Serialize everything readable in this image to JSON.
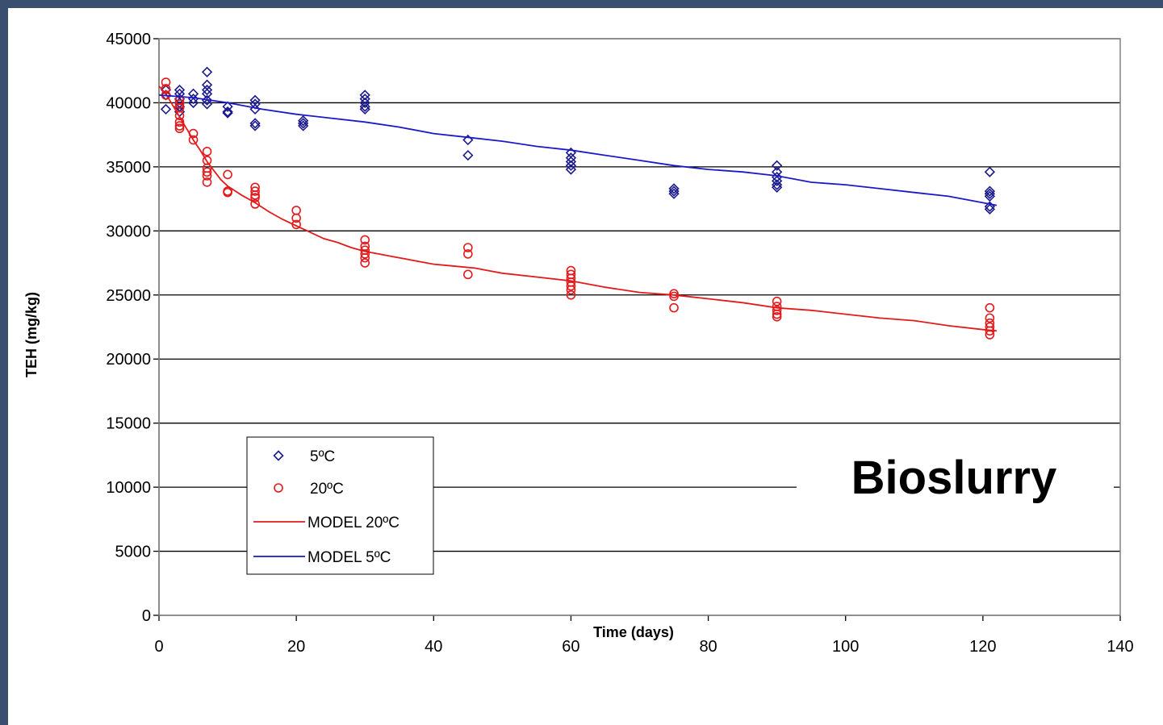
{
  "chart_data": {
    "type": "scatter",
    "xlabel": "Time (days)",
    "ylabel": "TEH (mg/kg)",
    "xlim": [
      0,
      140
    ],
    "ylim": [
      0,
      45000
    ],
    "xticks": [
      0,
      20,
      40,
      60,
      80,
      100,
      120,
      140
    ],
    "yticks": [
      0,
      5000,
      10000,
      15000,
      20000,
      25000,
      30000,
      35000,
      40000,
      45000
    ],
    "grid": "horizontal",
    "legend_position": "bottom-left",
    "annotation": "Bioslurry",
    "series": [
      {
        "name": "5ºC",
        "kind": "scatter",
        "marker": "diamond",
        "color": "#1a1a8c",
        "points": [
          [
            1,
            41000
          ],
          [
            1,
            40600
          ],
          [
            1,
            39500
          ],
          [
            3,
            41000
          ],
          [
            3,
            40700
          ],
          [
            3,
            40300
          ],
          [
            3,
            40000
          ],
          [
            3,
            39700
          ],
          [
            3,
            39300
          ],
          [
            5,
            40700
          ],
          [
            5,
            40300
          ],
          [
            5,
            40000
          ],
          [
            7,
            42400
          ],
          [
            7,
            41400
          ],
          [
            7,
            41000
          ],
          [
            7,
            40700
          ],
          [
            7,
            40200
          ],
          [
            7,
            39900
          ],
          [
            10,
            39700
          ],
          [
            10,
            39300
          ],
          [
            10,
            39200
          ],
          [
            14,
            40200
          ],
          [
            14,
            39900
          ],
          [
            14,
            39500
          ],
          [
            14,
            38400
          ],
          [
            14,
            38200
          ],
          [
            21,
            38600
          ],
          [
            21,
            38400
          ],
          [
            21,
            38200
          ],
          [
            30,
            40600
          ],
          [
            30,
            40300
          ],
          [
            30,
            40000
          ],
          [
            30,
            39700
          ],
          [
            30,
            39500
          ],
          [
            45,
            37100
          ],
          [
            45,
            35900
          ],
          [
            60,
            36100
          ],
          [
            60,
            35700
          ],
          [
            60,
            35400
          ],
          [
            60,
            35100
          ],
          [
            60,
            34800
          ],
          [
            75,
            33300
          ],
          [
            75,
            33100
          ],
          [
            75,
            32900
          ],
          [
            90,
            35100
          ],
          [
            90,
            34600
          ],
          [
            90,
            34200
          ],
          [
            90,
            33900
          ],
          [
            90,
            33600
          ],
          [
            90,
            33400
          ],
          [
            121,
            34600
          ],
          [
            121,
            33100
          ],
          [
            121,
            32900
          ],
          [
            121,
            32700
          ],
          [
            121,
            31900
          ],
          [
            121,
            31700
          ]
        ]
      },
      {
        "name": "20ºC",
        "kind": "scatter",
        "marker": "circle",
        "color": "#e31a1c",
        "points": [
          [
            1,
            41600
          ],
          [
            1,
            41100
          ],
          [
            1,
            40600
          ],
          [
            3,
            40200
          ],
          [
            3,
            39900
          ],
          [
            3,
            39600
          ],
          [
            3,
            39000
          ],
          [
            3,
            38500
          ],
          [
            3,
            38200
          ],
          [
            3,
            38000
          ],
          [
            5,
            37600
          ],
          [
            5,
            37100
          ],
          [
            7,
            36200
          ],
          [
            7,
            35500
          ],
          [
            7,
            34900
          ],
          [
            7,
            34600
          ],
          [
            7,
            34300
          ],
          [
            7,
            33800
          ],
          [
            10,
            34400
          ],
          [
            10,
            33100
          ],
          [
            10,
            33000
          ],
          [
            14,
            33400
          ],
          [
            14,
            33100
          ],
          [
            14,
            32800
          ],
          [
            14,
            32600
          ],
          [
            14,
            32100
          ],
          [
            20,
            31600
          ],
          [
            20,
            31000
          ],
          [
            20,
            30500
          ],
          [
            30,
            29300
          ],
          [
            30,
            28800
          ],
          [
            30,
            28500
          ],
          [
            30,
            28200
          ],
          [
            30,
            27900
          ],
          [
            30,
            27500
          ],
          [
            45,
            28700
          ],
          [
            45,
            28200
          ],
          [
            45,
            26600
          ],
          [
            60,
            26900
          ],
          [
            60,
            26600
          ],
          [
            60,
            26300
          ],
          [
            60,
            26000
          ],
          [
            60,
            25700
          ],
          [
            60,
            25400
          ],
          [
            60,
            25000
          ],
          [
            75,
            25100
          ],
          [
            75,
            24900
          ],
          [
            75,
            24000
          ],
          [
            90,
            24500
          ],
          [
            90,
            24100
          ],
          [
            90,
            23800
          ],
          [
            90,
            23500
          ],
          [
            90,
            23300
          ],
          [
            121,
            24000
          ],
          [
            121,
            23200
          ],
          [
            121,
            22800
          ],
          [
            121,
            22500
          ],
          [
            121,
            22200
          ],
          [
            121,
            21900
          ]
        ]
      },
      {
        "name": "MODEL 20ºC",
        "kind": "line",
        "color": "#e31a1c",
        "points": [
          [
            0,
            41300
          ],
          [
            1,
            40700
          ],
          [
            2,
            39800
          ],
          [
            3,
            38900
          ],
          [
            4,
            38000
          ],
          [
            5,
            37100
          ],
          [
            6,
            36300
          ],
          [
            7,
            35400
          ],
          [
            8,
            34700
          ],
          [
            9,
            34000
          ],
          [
            10,
            33500
          ],
          [
            12,
            32800
          ],
          [
            14,
            32200
          ],
          [
            16,
            31500
          ],
          [
            18,
            30900
          ],
          [
            20,
            30400
          ],
          [
            22,
            29900
          ],
          [
            24,
            29400
          ],
          [
            26,
            29100
          ],
          [
            28,
            28700
          ],
          [
            30,
            28400
          ],
          [
            32,
            28200
          ],
          [
            34,
            28000
          ],
          [
            36,
            27800
          ],
          [
            38,
            27600
          ],
          [
            40,
            27400
          ],
          [
            42,
            27300
          ],
          [
            44,
            27200
          ],
          [
            46,
            27100
          ],
          [
            48,
            26900
          ],
          [
            50,
            26700
          ],
          [
            55,
            26400
          ],
          [
            60,
            26100
          ],
          [
            65,
            25600
          ],
          [
            70,
            25200
          ],
          [
            75,
            25000
          ],
          [
            80,
            24700
          ],
          [
            85,
            24400
          ],
          [
            90,
            24000
          ],
          [
            95,
            23800
          ],
          [
            100,
            23500
          ],
          [
            105,
            23200
          ],
          [
            110,
            23000
          ],
          [
            115,
            22600
          ],
          [
            120,
            22300
          ],
          [
            122,
            22200
          ]
        ]
      },
      {
        "name": "MODEL 5ºC",
        "kind": "line",
        "color": "#1a1ac8",
        "points": [
          [
            0,
            40600
          ],
          [
            5,
            40400
          ],
          [
            10,
            40000
          ],
          [
            15,
            39500
          ],
          [
            20,
            39100
          ],
          [
            25,
            38800
          ],
          [
            30,
            38500
          ],
          [
            35,
            38100
          ],
          [
            40,
            37600
          ],
          [
            45,
            37300
          ],
          [
            50,
            37000
          ],
          [
            55,
            36600
          ],
          [
            60,
            36300
          ],
          [
            65,
            35900
          ],
          [
            70,
            35500
          ],
          [
            75,
            35100
          ],
          [
            80,
            34800
          ],
          [
            85,
            34600
          ],
          [
            90,
            34300
          ],
          [
            95,
            33800
          ],
          [
            100,
            33600
          ],
          [
            105,
            33300
          ],
          [
            110,
            33000
          ],
          [
            115,
            32700
          ],
          [
            120,
            32200
          ],
          [
            122,
            32000
          ]
        ]
      }
    ]
  }
}
